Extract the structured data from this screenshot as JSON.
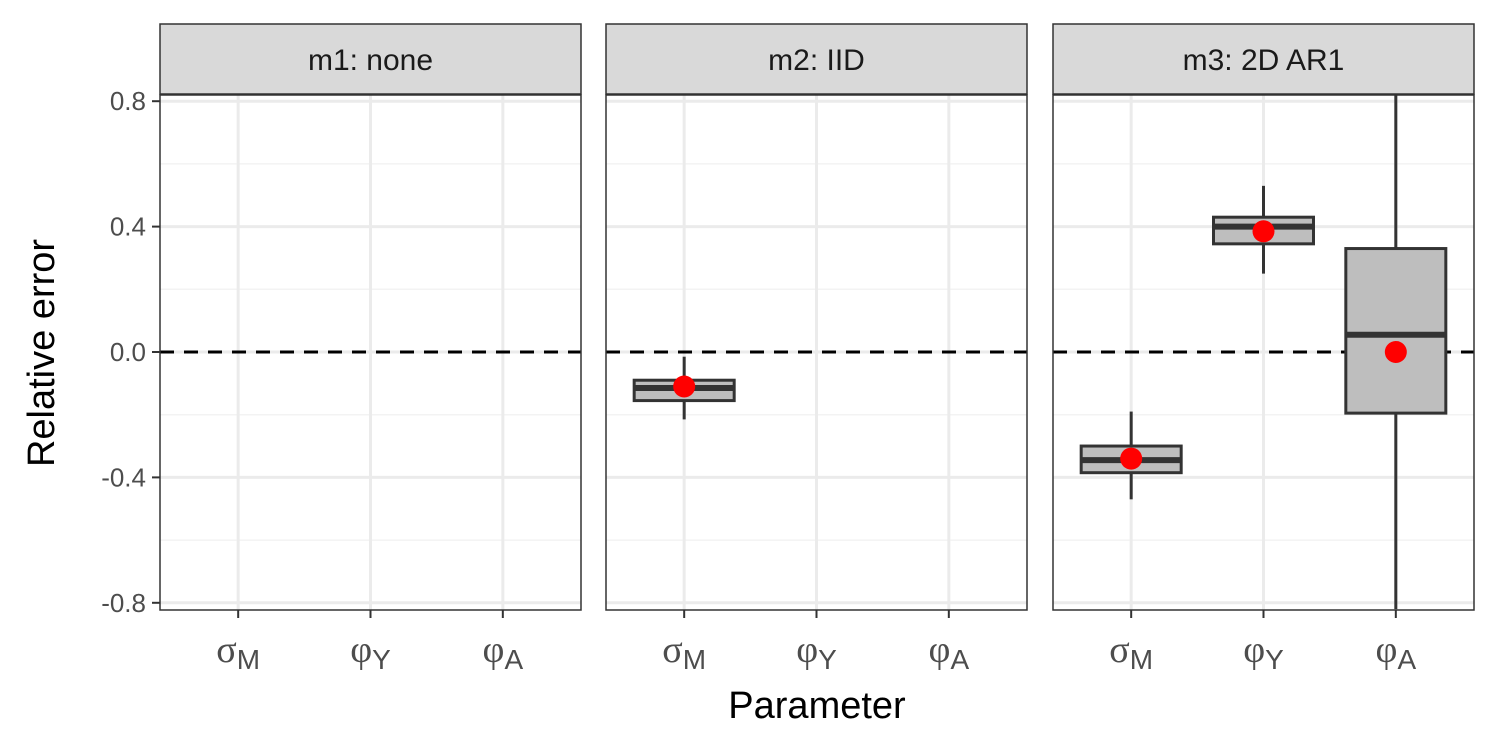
{
  "chart_data": {
    "type": "boxplot",
    "xlabel": "Parameter",
    "ylabel": "Relative error",
    "ylim": [
      -0.82,
      0.82
    ],
    "y_ticks": [
      -0.8,
      -0.4,
      0.0,
      0.4,
      0.8
    ],
    "y_tick_labels": [
      "-0.8",
      "-0.4",
      "0.0",
      "0.4",
      "0.8"
    ],
    "reference_line": 0.0,
    "categories": [
      {
        "base": "σ",
        "sub": "M"
      },
      {
        "base": "φ",
        "sub": "Y"
      },
      {
        "base": "φ",
        "sub": "A"
      }
    ],
    "colors": {
      "box_fill": "#bebebe",
      "box_stroke": "#333333",
      "point": "#ff0000",
      "strip_fill": "#d9d9d9",
      "grid": "#ebebeb",
      "panel_border": "#333333"
    },
    "panels": [
      {
        "label": "m1:  none",
        "boxes": []
      },
      {
        "label": "m2:  IID",
        "boxes": [
          {
            "category_index": 0,
            "whisker_low": -0.215,
            "q1": -0.155,
            "median": -0.115,
            "q3": -0.09,
            "whisker_high": -0.015,
            "point": -0.11
          }
        ]
      },
      {
        "label": "m3:  2D  AR1",
        "boxes": [
          {
            "category_index": 0,
            "whisker_low": -0.47,
            "q1": -0.385,
            "median": -0.345,
            "q3": -0.3,
            "whisker_high": -0.19,
            "point": -0.34
          },
          {
            "category_index": 1,
            "whisker_low": 0.25,
            "q1": 0.345,
            "median": 0.4,
            "q3": 0.43,
            "whisker_high": 0.53,
            "point": 0.385
          },
          {
            "category_index": 2,
            "whisker_low": -0.82,
            "q1": -0.195,
            "median": 0.055,
            "q3": 0.33,
            "whisker_high": 0.82,
            "point": 0.0
          }
        ]
      }
    ]
  }
}
